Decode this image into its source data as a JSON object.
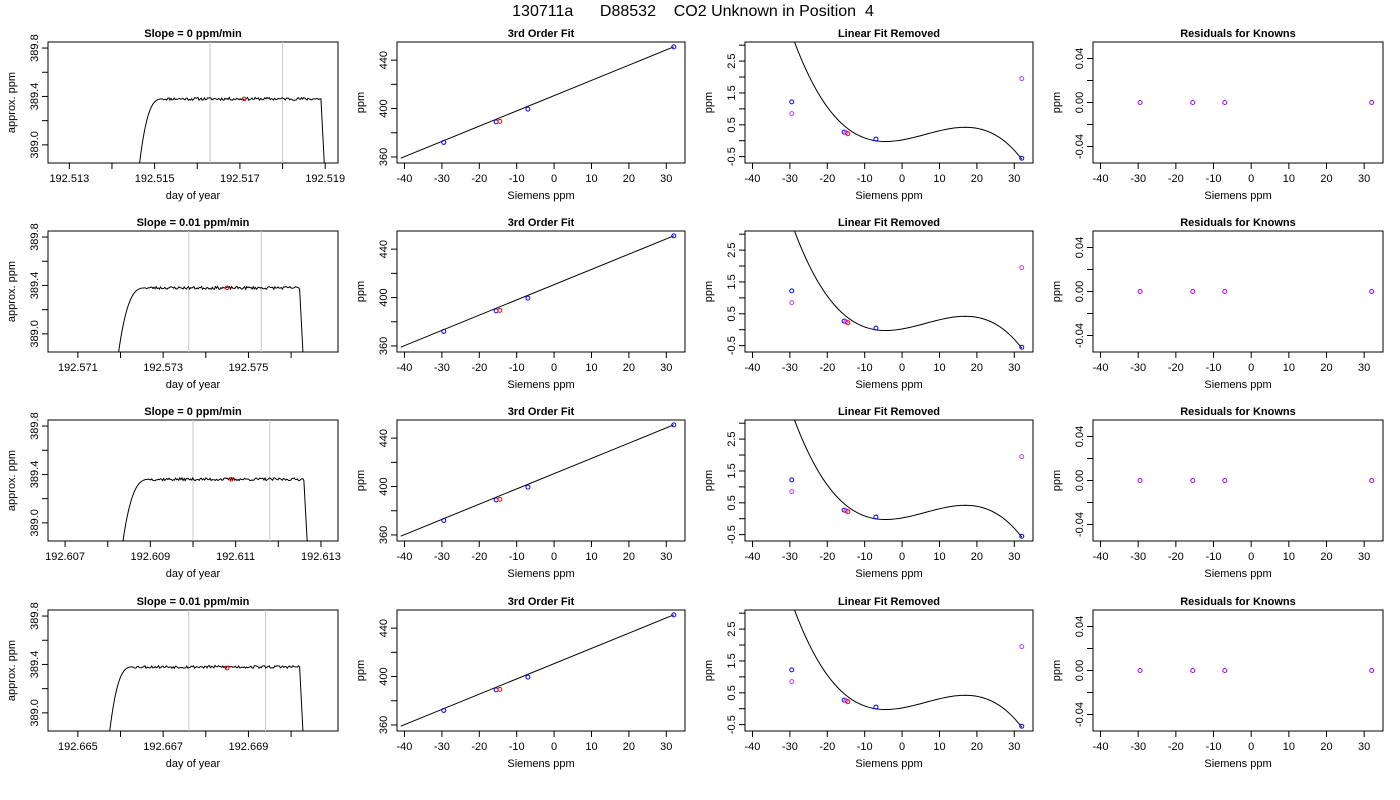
{
  "figure": {
    "title": "130711a      D88532    CO2 Unknown in Position  4"
  },
  "colors": {
    "line": "#000000",
    "frame": "#000000",
    "vline": "#c8c8c8",
    "known_point": "#0000ff",
    "unknown_point": "#ff0000",
    "residual_point": "#a000ff",
    "linear_residual": "#c040ff"
  },
  "chart_data": [
    {
      "row": 0,
      "type": "line",
      "title": "Slope =  0  ppm/min",
      "xlabel": "day of year",
      "ylabel": "approx. ppm",
      "xlim": [
        192.5125,
        192.5193
      ],
      "ylim": [
        388.85,
        389.85
      ],
      "xticks": [
        192.513,
        192.515,
        192.517,
        192.519
      ],
      "xticks_minor": [
        192.514,
        192.516,
        192.518
      ],
      "yticks": [
        389.0,
        389.4,
        389.8
      ],
      "yticks_minor": [
        389.2,
        389.6
      ],
      "trace": {
        "x_start": 192.5146,
        "x_plateau": 192.5152,
        "x_end": 192.5189,
        "x_drop": 192.519,
        "level": 389.38,
        "amplitude": 0.012,
        "base": 388.7,
        "seed": 11
      },
      "vlines": [
        192.5163,
        192.518
      ],
      "marker": {
        "x": 192.5171,
        "y": 389.38
      }
    },
    {
      "row": 0,
      "type": "scatter",
      "title": "3rd Order Fit",
      "xlabel": "Siemens ppm",
      "ylabel": "ppm",
      "xlim": [
        -42,
        35
      ],
      "ylim": [
        355,
        455
      ],
      "xticks": [
        -40,
        -30,
        -20,
        -10,
        0,
        10,
        20,
        30
      ],
      "yticks": [
        360,
        400,
        440
      ],
      "yticks_minor": [
        380,
        420
      ],
      "fit_line": {
        "x": [
          -41,
          32
        ],
        "y": [
          359,
          451
        ]
      },
      "points": [
        {
          "x": -29.5,
          "y": 372,
          "role": "known"
        },
        {
          "x": -15.5,
          "y": 389,
          "role": "known"
        },
        {
          "x": -14.5,
          "y": 389.4,
          "role": "unknown"
        },
        {
          "x": -7,
          "y": 399.5,
          "role": "known"
        },
        {
          "x": 32,
          "y": 451,
          "role": "known"
        }
      ]
    },
    {
      "row": 0,
      "type": "scatter",
      "title": "Linear Fit Removed",
      "xlabel": "Siemens ppm",
      "ylabel": "ppm",
      "xlim": [
        -42,
        35
      ],
      "ylim": [
        -0.7,
        3.1
      ],
      "xticks": [
        -40,
        -30,
        -20,
        -10,
        0,
        10,
        20,
        30
      ],
      "yticks": [
        -0.5,
        0.5,
        1.5,
        2.5
      ],
      "yticks_minor": [
        0,
        1,
        2,
        3
      ],
      "curve": {
        "a": -9.33e-05,
        "b": 0.00175,
        "c": 0.0206,
        "d": 0.024,
        "x0": -40.5,
        "x1": 32
      },
      "points": [
        {
          "x": -29.5,
          "y": 1.22,
          "role": "known"
        },
        {
          "x": -29.5,
          "y": 0.85,
          "role": "linear"
        },
        {
          "x": -15.5,
          "y": 0.27,
          "role": "known"
        },
        {
          "x": -15.0,
          "y": 0.25,
          "role": "linear"
        },
        {
          "x": -14.5,
          "y": 0.22,
          "role": "unknown"
        },
        {
          "x": -7,
          "y": 0.05,
          "role": "known"
        },
        {
          "x": 32,
          "y": -0.55,
          "role": "known"
        },
        {
          "x": 32,
          "y": 1.95,
          "role": "linear"
        }
      ]
    },
    {
      "row": 0,
      "type": "scatter",
      "title": "Residuals for Knowns",
      "xlabel": "Siemens ppm",
      "ylabel": "ppm",
      "xlim": [
        -42,
        35
      ],
      "ylim": [
        -0.055,
        0.055
      ],
      "xticks": [
        -40,
        -30,
        -20,
        -10,
        0,
        10,
        20,
        30
      ],
      "yticks": [
        -0.04,
        0.0,
        0.04
      ],
      "yticks_minor": [
        -0.02,
        0.02
      ],
      "points": [
        {
          "x": -29.5,
          "y": 0,
          "role": "residual"
        },
        {
          "x": -15.5,
          "y": 0,
          "role": "residual"
        },
        {
          "x": -7,
          "y": 0,
          "role": "residual"
        },
        {
          "x": 32,
          "y": 0,
          "role": "residual"
        }
      ]
    },
    {
      "row": 1,
      "type": "line",
      "title": "Slope =  0.01  ppm/min",
      "xlabel": "day of year",
      "ylabel": "approx. ppm",
      "xlim": [
        192.5703,
        192.5771
      ],
      "ylim": [
        388.85,
        389.85
      ],
      "xticks": [
        192.571,
        192.573,
        192.575
      ],
      "xticks_minor": [
        192.572,
        192.574,
        192.576
      ],
      "yticks": [
        389.0,
        389.4,
        389.8
      ],
      "yticks_minor": [
        389.2,
        389.6
      ],
      "trace": {
        "x_start": 192.5719,
        "x_plateau": 192.5726,
        "x_end": 192.5762,
        "x_drop": 192.5763,
        "level": 389.38,
        "amplitude": 0.012,
        "base": 388.7,
        "seed": 23
      },
      "vlines": [
        192.5736,
        192.5753
      ],
      "marker": {
        "x": 192.5745,
        "y": 389.38
      }
    },
    {
      "row": 1,
      "type": "scatter",
      "title": "3rd Order Fit",
      "xlabel": "Siemens ppm",
      "ylabel": "ppm",
      "xlim": [
        -42,
        35
      ],
      "ylim": [
        355,
        455
      ],
      "xticks": [
        -40,
        -30,
        -20,
        -10,
        0,
        10,
        20,
        30
      ],
      "yticks": [
        360,
        400,
        440
      ],
      "yticks_minor": [
        380,
        420
      ],
      "fit_line": {
        "x": [
          -41,
          32
        ],
        "y": [
          359,
          451
        ]
      },
      "points": [
        {
          "x": -29.5,
          "y": 372,
          "role": "known"
        },
        {
          "x": -15.5,
          "y": 389,
          "role": "known"
        },
        {
          "x": -14.5,
          "y": 389.4,
          "role": "unknown"
        },
        {
          "x": -7,
          "y": 399.5,
          "role": "known"
        },
        {
          "x": 32,
          "y": 451,
          "role": "known"
        }
      ]
    },
    {
      "row": 1,
      "type": "scatter",
      "title": "Linear Fit Removed",
      "xlabel": "Siemens ppm",
      "ylabel": "ppm",
      "xlim": [
        -42,
        35
      ],
      "ylim": [
        -0.7,
        3.1
      ],
      "xticks": [
        -40,
        -30,
        -20,
        -10,
        0,
        10,
        20,
        30
      ],
      "yticks": [
        -0.5,
        0.5,
        1.5,
        2.5
      ],
      "yticks_minor": [
        0,
        1,
        2,
        3
      ],
      "curve": {
        "a": -9.33e-05,
        "b": 0.00175,
        "c": 0.0206,
        "d": 0.024,
        "x0": -40.5,
        "x1": 32
      },
      "points": [
        {
          "x": -29.5,
          "y": 1.22,
          "role": "known"
        },
        {
          "x": -29.5,
          "y": 0.85,
          "role": "linear"
        },
        {
          "x": -15.5,
          "y": 0.27,
          "role": "known"
        },
        {
          "x": -15.0,
          "y": 0.25,
          "role": "linear"
        },
        {
          "x": -14.5,
          "y": 0.22,
          "role": "unknown"
        },
        {
          "x": -7,
          "y": 0.05,
          "role": "known"
        },
        {
          "x": 32,
          "y": -0.55,
          "role": "known"
        },
        {
          "x": 32,
          "y": 1.95,
          "role": "linear"
        }
      ]
    },
    {
      "row": 1,
      "type": "scatter",
      "title": "Residuals for Knowns",
      "xlabel": "Siemens ppm",
      "ylabel": "ppm",
      "xlim": [
        -42,
        35
      ],
      "ylim": [
        -0.055,
        0.055
      ],
      "xticks": [
        -40,
        -30,
        -20,
        -10,
        0,
        10,
        20,
        30
      ],
      "yticks": [
        -0.04,
        0.0,
        0.04
      ],
      "yticks_minor": [
        -0.02,
        0.02
      ],
      "points": [
        {
          "x": -29.5,
          "y": 0,
          "role": "residual"
        },
        {
          "x": -15.5,
          "y": 0,
          "role": "residual"
        },
        {
          "x": -7,
          "y": 0,
          "role": "residual"
        },
        {
          "x": 32,
          "y": 0,
          "role": "residual"
        }
      ]
    },
    {
      "row": 2,
      "type": "line",
      "title": "Slope =  0  ppm/min",
      "xlabel": "day of year",
      "ylabel": "approx. ppm",
      "xlim": [
        192.6066,
        192.6134
      ],
      "ylim": [
        388.85,
        389.85
      ],
      "xticks": [
        192.607,
        192.609,
        192.611,
        192.613
      ],
      "xticks_minor": [
        192.608,
        192.61,
        192.612
      ],
      "yticks": [
        389.0,
        389.4,
        389.8
      ],
      "yticks_minor": [
        389.2,
        389.6
      ],
      "trace": {
        "x_start": 192.6083,
        "x_plateau": 192.609,
        "x_end": 192.6126,
        "x_drop": 192.6127,
        "level": 389.36,
        "amplitude": 0.012,
        "base": 388.7,
        "seed": 37
      },
      "vlines": [
        192.61,
        192.6118
      ],
      "marker": {
        "x": 192.6109,
        "y": 389.36
      }
    },
    {
      "row": 2,
      "type": "scatter",
      "title": "3rd Order Fit",
      "xlabel": "Siemens ppm",
      "ylabel": "ppm",
      "xlim": [
        -42,
        35
      ],
      "ylim": [
        355,
        455
      ],
      "xticks": [
        -40,
        -30,
        -20,
        -10,
        0,
        10,
        20,
        30
      ],
      "yticks": [
        360,
        400,
        440
      ],
      "yticks_minor": [
        380,
        420
      ],
      "fit_line": {
        "x": [
          -41,
          32
        ],
        "y": [
          359,
          451
        ]
      },
      "points": [
        {
          "x": -29.5,
          "y": 372,
          "role": "known"
        },
        {
          "x": -15.5,
          "y": 389,
          "role": "known"
        },
        {
          "x": -14.5,
          "y": 389.4,
          "role": "unknown"
        },
        {
          "x": -7,
          "y": 399.5,
          "role": "known"
        },
        {
          "x": 32,
          "y": 451,
          "role": "known"
        }
      ]
    },
    {
      "row": 2,
      "type": "scatter",
      "title": "Linear Fit Removed",
      "xlabel": "Siemens ppm",
      "ylabel": "ppm",
      "xlim": [
        -42,
        35
      ],
      "ylim": [
        -0.7,
        3.1
      ],
      "xticks": [
        -40,
        -30,
        -20,
        -10,
        0,
        10,
        20,
        30
      ],
      "yticks": [
        -0.5,
        0.5,
        1.5,
        2.5
      ],
      "yticks_minor": [
        0,
        1,
        2,
        3
      ],
      "curve": {
        "a": -9.33e-05,
        "b": 0.00175,
        "c": 0.0206,
        "d": 0.024,
        "x0": -40.5,
        "x1": 32
      },
      "points": [
        {
          "x": -29.5,
          "y": 1.22,
          "role": "known"
        },
        {
          "x": -29.5,
          "y": 0.85,
          "role": "linear"
        },
        {
          "x": -15.5,
          "y": 0.27,
          "role": "known"
        },
        {
          "x": -15.0,
          "y": 0.25,
          "role": "linear"
        },
        {
          "x": -14.5,
          "y": 0.22,
          "role": "unknown"
        },
        {
          "x": -7,
          "y": 0.05,
          "role": "known"
        },
        {
          "x": 32,
          "y": -0.55,
          "role": "known"
        },
        {
          "x": 32,
          "y": 1.95,
          "role": "linear"
        }
      ]
    },
    {
      "row": 2,
      "type": "scatter",
      "title": "Residuals for Knowns",
      "xlabel": "Siemens ppm",
      "ylabel": "ppm",
      "xlim": [
        -42,
        35
      ],
      "ylim": [
        -0.055,
        0.055
      ],
      "xticks": [
        -40,
        -30,
        -20,
        -10,
        0,
        10,
        20,
        30
      ],
      "yticks": [
        -0.04,
        0.0,
        0.04
      ],
      "yticks_minor": [
        -0.02,
        0.02
      ],
      "points": [
        {
          "x": -29.5,
          "y": 0,
          "role": "residual"
        },
        {
          "x": -15.5,
          "y": 0,
          "role": "residual"
        },
        {
          "x": -7,
          "y": 0,
          "role": "residual"
        },
        {
          "x": 32,
          "y": 0,
          "role": "residual"
        }
      ]
    },
    {
      "row": 3,
      "type": "line",
      "title": "Slope =  0.01  ppm/min",
      "xlabel": "day of year",
      "ylabel": "approx. ppm",
      "xlim": [
        192.6643,
        192.6711
      ],
      "ylim": [
        388.85,
        389.85
      ],
      "xticks": [
        192.665,
        192.667,
        192.669
      ],
      "xticks_minor": [
        192.666,
        192.668,
        192.67
      ],
      "yticks": [
        389.0,
        389.4,
        389.8
      ],
      "yticks_minor": [
        389.2,
        389.6
      ],
      "trace": {
        "x_start": 192.6657,
        "x_plateau": 192.6663,
        "x_end": 192.6702,
        "x_drop": 192.6703,
        "level": 389.38,
        "amplitude": 0.012,
        "base": 388.7,
        "seed": 53
      },
      "vlines": [
        192.6676,
        192.6694
      ],
      "marker": {
        "x": 192.6685,
        "y": 389.37
      }
    },
    {
      "row": 3,
      "type": "scatter",
      "title": "3rd Order Fit",
      "xlabel": "Siemens ppm",
      "ylabel": "ppm",
      "xlim": [
        -42,
        35
      ],
      "ylim": [
        355,
        455
      ],
      "xticks": [
        -40,
        -30,
        -20,
        -10,
        0,
        10,
        20,
        30
      ],
      "yticks": [
        360,
        400,
        440
      ],
      "yticks_minor": [
        380,
        420
      ],
      "fit_line": {
        "x": [
          -41,
          32
        ],
        "y": [
          359,
          451
        ]
      },
      "points": [
        {
          "x": -29.5,
          "y": 372,
          "role": "known"
        },
        {
          "x": -15.5,
          "y": 389,
          "role": "known"
        },
        {
          "x": -14.5,
          "y": 389.4,
          "role": "unknown"
        },
        {
          "x": -7,
          "y": 399.5,
          "role": "known"
        },
        {
          "x": 32,
          "y": 451,
          "role": "known"
        }
      ]
    },
    {
      "row": 3,
      "type": "scatter",
      "title": "Linear Fit Removed",
      "xlabel": "Siemens ppm",
      "ylabel": "ppm",
      "xlim": [
        -42,
        35
      ],
      "ylim": [
        -0.7,
        3.1
      ],
      "xticks": [
        -40,
        -30,
        -20,
        -10,
        0,
        10,
        20,
        30
      ],
      "yticks": [
        -0.5,
        0.5,
        1.5,
        2.5
      ],
      "yticks_minor": [
        0,
        1,
        2,
        3
      ],
      "curve": {
        "a": -9.33e-05,
        "b": 0.00175,
        "c": 0.0206,
        "d": 0.024,
        "x0": -40.5,
        "x1": 32
      },
      "points": [
        {
          "x": -29.5,
          "y": 1.22,
          "role": "known"
        },
        {
          "x": -29.5,
          "y": 0.85,
          "role": "linear"
        },
        {
          "x": -15.5,
          "y": 0.27,
          "role": "known"
        },
        {
          "x": -15.0,
          "y": 0.25,
          "role": "linear"
        },
        {
          "x": -14.5,
          "y": 0.22,
          "role": "unknown"
        },
        {
          "x": -7,
          "y": 0.05,
          "role": "known"
        },
        {
          "x": 32,
          "y": -0.55,
          "role": "known"
        },
        {
          "x": 32,
          "y": 1.95,
          "role": "linear"
        }
      ]
    },
    {
      "row": 3,
      "type": "scatter",
      "title": "Residuals for Knowns",
      "xlabel": "Siemens ppm",
      "ylabel": "ppm",
      "xlim": [
        -42,
        35
      ],
      "ylim": [
        -0.055,
        0.055
      ],
      "xticks": [
        -40,
        -30,
        -20,
        -10,
        0,
        10,
        20,
        30
      ],
      "yticks": [
        -0.04,
        0.0,
        0.04
      ],
      "yticks_minor": [
        -0.02,
        0.02
      ],
      "points": [
        {
          "x": -29.5,
          "y": 0,
          "role": "residual"
        },
        {
          "x": -15.5,
          "y": 0,
          "role": "residual"
        },
        {
          "x": -7,
          "y": 0,
          "role": "residual"
        },
        {
          "x": 32,
          "y": 0,
          "role": "residual"
        }
      ]
    }
  ]
}
